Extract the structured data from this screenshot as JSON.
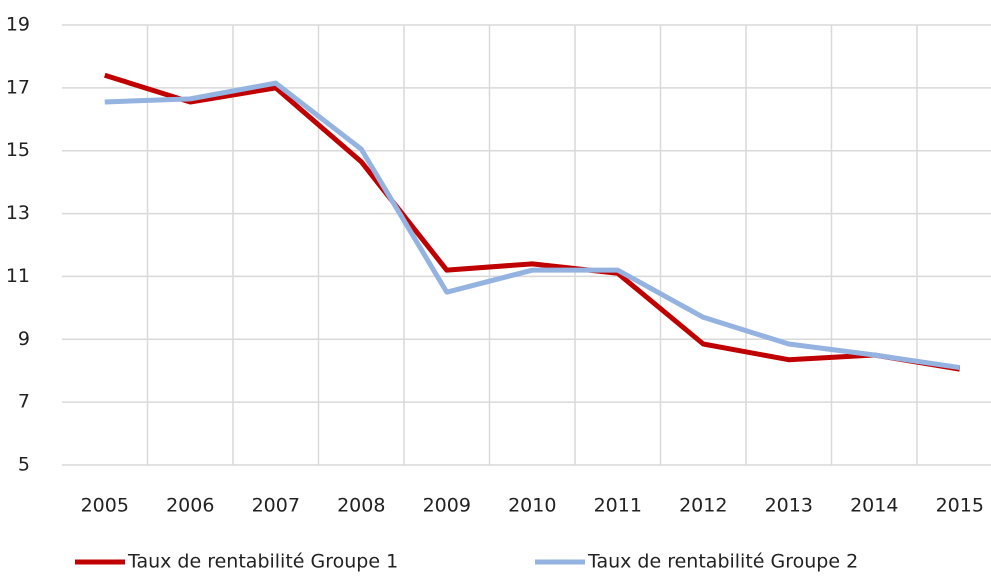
{
  "chart_data": {
    "type": "line",
    "categories": [
      "2005",
      "2006",
      "2007",
      "2008",
      "2009",
      "2010",
      "2011",
      "2012",
      "2013",
      "2014",
      "2015"
    ],
    "series": [
      {
        "name": "Taux de rentabilité Groupe 1",
        "color": "#c00000",
        "values": [
          17.4,
          16.55,
          17.0,
          14.65,
          11.2,
          11.4,
          11.1,
          8.85,
          8.35,
          8.5,
          8.05
        ]
      },
      {
        "name": "Taux de rentabilité Groupe 2",
        "color": "#95b3e0",
        "values": [
          16.55,
          16.65,
          17.15,
          15.05,
          10.5,
          11.2,
          11.2,
          9.7,
          8.85,
          8.5,
          8.1
        ]
      }
    ],
    "ylim": [
      5,
      19
    ],
    "yticks": [
      5,
      7,
      9,
      11,
      13,
      15,
      17,
      19
    ],
    "grid": true,
    "legend": "bottom"
  }
}
